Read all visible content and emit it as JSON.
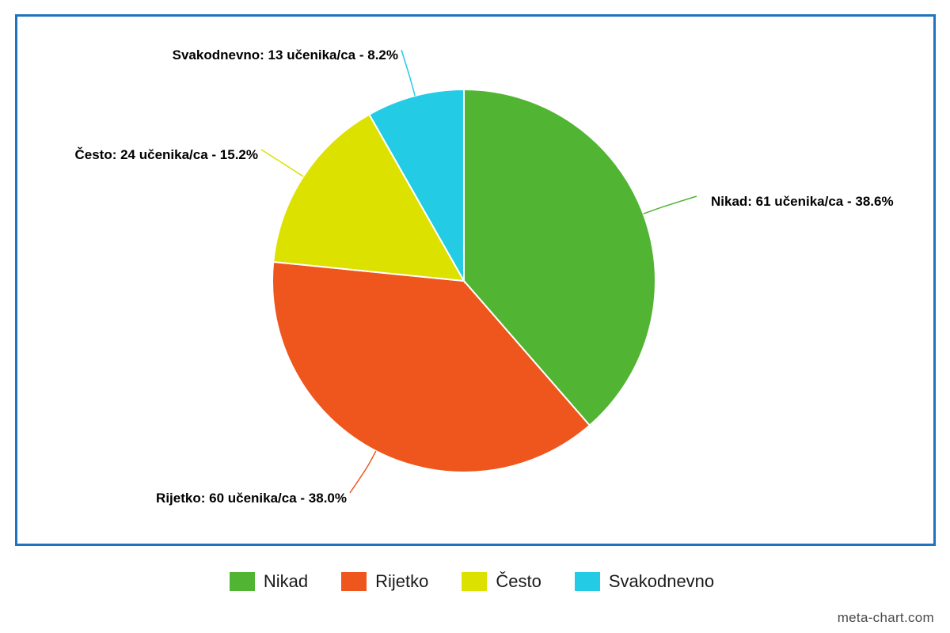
{
  "chart_data": {
    "type": "pie",
    "slices": [
      {
        "name": "Nikad",
        "value": 61,
        "percent": 38.6,
        "label": "Nikad: 61 učenika/ca - 38.6%",
        "color": "#52b433"
      },
      {
        "name": "Rijetko",
        "value": 60,
        "percent": 38.0,
        "label": "Rijetko: 60 učenika/ca - 38.0%",
        "color": "#ee561d"
      },
      {
        "name": "Često",
        "value": 24,
        "percent": 15.2,
        "label": "Često: 24 učenika/ca - 15.2%",
        "color": "#dde100"
      },
      {
        "name": "Svakodnevno",
        "value": 13,
        "percent": 8.2,
        "label": "Svakodnevno: 13 učenika/ca - 8.2%",
        "color": "#24cbe5"
      }
    ],
    "legend_position": "bottom",
    "start_angle": "top",
    "direction": "clockwise"
  },
  "legend": {
    "items": [
      {
        "label": "Nikad",
        "color": "#52b433"
      },
      {
        "label": "Rijetko",
        "color": "#ee561d"
      },
      {
        "label": "Često",
        "color": "#dde100"
      },
      {
        "label": "Svakodnevno",
        "color": "#24cbe5"
      }
    ]
  },
  "frame_color": "#1f73bf",
  "credit": "meta-chart.com"
}
